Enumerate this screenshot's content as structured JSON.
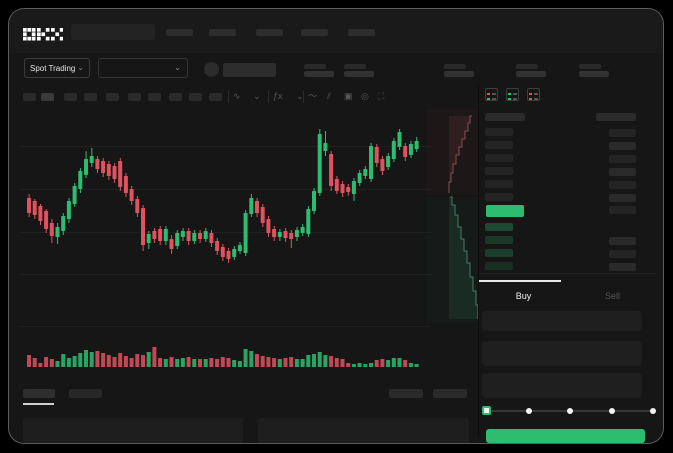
{
  "app": {
    "name": "OKX"
  },
  "colors": {
    "up_green": "#2ebd70",
    "down_red": "#df5260",
    "window_bg": "#161616",
    "topbar_bg": "#1a1a1a",
    "placeholder": "#2b2b2b",
    "active_tab_underline": "#e8e8e8"
  },
  "topbar": {
    "nav_placeholders": 5,
    "has_search_placeholder": true
  },
  "market_header": {
    "market_type_selector": {
      "label": "Spot Trading",
      "chevron": "⌄"
    },
    "pair_selector": {
      "chevron": "⌄"
    },
    "stat_placeholders": 5
  },
  "chart_toolbar": {
    "timeframe_placeholders": 10,
    "icons": [
      {
        "name": "candle-style-icon",
        "glyph": "∿"
      },
      {
        "name": "chevron-down-icon",
        "glyph": "⌄"
      },
      {
        "name": "indicators-icon",
        "glyph": "ƒx"
      },
      {
        "name": "chevron-down-icon",
        "glyph": "⌄"
      },
      {
        "name": "trendline-tool-icon",
        "glyph": "〜"
      },
      {
        "name": "parallel-lines-tool-icon",
        "glyph": "⫽"
      },
      {
        "name": "shape-tool-icon",
        "glyph": "▣"
      },
      {
        "name": "target-icon",
        "glyph": "◎"
      },
      {
        "name": "fullscreen-icon",
        "glyph": "⛶"
      }
    ]
  },
  "order_book": {
    "view_toggle_icons": [
      "combined-book-icon",
      "bids-only-icon",
      "asks-only-icon"
    ],
    "ask_row_placeholders": 6,
    "bid_row_placeholders": 4,
    "amount_row_placeholders": 10,
    "current_price_highlight_color": "#2ebd70"
  },
  "trade_panel": {
    "tabs": [
      {
        "label": "Buy",
        "active": true
      },
      {
        "label": "Sell",
        "active": false
      }
    ],
    "field_placeholders": 3,
    "slider": {
      "stops": 5,
      "active_stop": 0,
      "handle_color": "#2ebd70"
    },
    "submit_button": {
      "color": "#2ebd70",
      "label": ""
    }
  },
  "bottom_bar": {
    "tab_placeholders": 2,
    "button_placeholders": 2,
    "panel_placeholders": 2
  },
  "chart_data": [
    {
      "id": "price-chart",
      "type": "candlestick",
      "title": "",
      "axes_labeled": false,
      "grid": true,
      "units": "relative price (0 = chart bottom, ~215 = chart top); no numeric axis labels visible",
      "colors": {
        "up": "#2ebd70",
        "down": "#df5260"
      },
      "candles_ohlc": [
        [
          133,
          137,
          114,
          118
        ],
        [
          130,
          132,
          112,
          116
        ],
        [
          125,
          127,
          106,
          110
        ],
        [
          120,
          122,
          98,
          102
        ],
        [
          108,
          112,
          88,
          95
        ],
        [
          94,
          108,
          87,
          104
        ],
        [
          100,
          118,
          96,
          115
        ],
        [
          112,
          133,
          108,
          130
        ],
        [
          127,
          148,
          124,
          145
        ],
        [
          142,
          163,
          138,
          160
        ],
        [
          156,
          180,
          153,
          172
        ],
        [
          168,
          183,
          164,
          175
        ],
        [
          172,
          175,
          158,
          162
        ],
        [
          170,
          173,
          154,
          158
        ],
        [
          167,
          170,
          151,
          155
        ],
        [
          165,
          168,
          148,
          152
        ],
        [
          170,
          173,
          140,
          144
        ],
        [
          155,
          158,
          134,
          138
        ],
        [
          142,
          145,
          126,
          130
        ],
        [
          132,
          135,
          114,
          118
        ],
        [
          123,
          126,
          80,
          86
        ],
        [
          88,
          100,
          82,
          97
        ],
        [
          100,
          103,
          88,
          92
        ],
        [
          102,
          105,
          86,
          90
        ],
        [
          90,
          105,
          86,
          102
        ],
        [
          92,
          96,
          77,
          82
        ],
        [
          85,
          101,
          82,
          98
        ],
        [
          94,
          103,
          90,
          100
        ],
        [
          100,
          103,
          86,
          90
        ],
        [
          90,
          101,
          87,
          98
        ],
        [
          98,
          101,
          88,
          92
        ],
        [
          92,
          103,
          89,
          100
        ],
        [
          98,
          101,
          84,
          88
        ],
        [
          90,
          93,
          76,
          80
        ],
        [
          84,
          87,
          70,
          74
        ],
        [
          80,
          83,
          68,
          72
        ],
        [
          74,
          85,
          71,
          82
        ],
        [
          80,
          89,
          77,
          86
        ],
        [
          78,
          121,
          75,
          118
        ],
        [
          117,
          137,
          114,
          133
        ],
        [
          130,
          133,
          114,
          118
        ],
        [
          124,
          127,
          104,
          108
        ],
        [
          112,
          115,
          94,
          98
        ],
        [
          102,
          105,
          90,
          94
        ],
        [
          94,
          102,
          90,
          99
        ],
        [
          100,
          103,
          89,
          93
        ],
        [
          98,
          101,
          83,
          92
        ],
        [
          94,
          104,
          90,
          101
        ],
        [
          98,
          107,
          95,
          104
        ],
        [
          97,
          125,
          94,
          122
        ],
        [
          120,
          143,
          117,
          140
        ],
        [
          138,
          202,
          135,
          197
        ],
        [
          180,
          200,
          175,
          188
        ],
        [
          177,
          180,
          140,
          145
        ],
        [
          152,
          155,
          137,
          140
        ],
        [
          147,
          150,
          134,
          138
        ],
        [
          144,
          147,
          135,
          139
        ],
        [
          137,
          153,
          130,
          150
        ],
        [
          148,
          161,
          145,
          158
        ],
        [
          155,
          165,
          152,
          162
        ],
        [
          152,
          188,
          149,
          185
        ],
        [
          184,
          187,
          164,
          168
        ],
        [
          172,
          175,
          156,
          160
        ],
        [
          164,
          178,
          161,
          175
        ],
        [
          172,
          193,
          169,
          190
        ],
        [
          184,
          202,
          181,
          199
        ],
        [
          185,
          188,
          170,
          174
        ],
        [
          176,
          190,
          173,
          187
        ],
        [
          182,
          194,
          179,
          190
        ]
      ],
      "volume": [
        12,
        9,
        4,
        10,
        8,
        6,
        13,
        9,
        11,
        14,
        17,
        15,
        16,
        14,
        12,
        10,
        14,
        11,
        9,
        13,
        12,
        15,
        20,
        9,
        8,
        10,
        8,
        9,
        10,
        8,
        8,
        8,
        9,
        8,
        10,
        9,
        7,
        6,
        18,
        16,
        13,
        11,
        10,
        9,
        8,
        9,
        10,
        8,
        8,
        12,
        13,
        15,
        12,
        11,
        9,
        8,
        4,
        3,
        4,
        3,
        4,
        7,
        8,
        7,
        9,
        9,
        7,
        4,
        3
      ]
    },
    {
      "id": "depth-chart",
      "type": "area",
      "orientation": "vertical",
      "note": "order-book depth wedge beside chart; asks (red) above mid, bids (green) below",
      "ask_steps": [
        [
          46,
          7
        ],
        [
          44,
          14
        ],
        [
          42,
          22
        ],
        [
          39,
          30
        ],
        [
          36,
          38
        ],
        [
          33,
          46
        ],
        [
          30,
          55
        ],
        [
          27,
          64
        ],
        [
          25,
          73
        ],
        [
          23,
          84
        ]
      ],
      "bid_steps": [
        [
          24,
          88
        ],
        [
          26,
          96
        ],
        [
          29,
          106
        ],
        [
          32,
          118
        ],
        [
          35,
          130
        ],
        [
          38,
          142
        ],
        [
          41,
          154
        ],
        [
          44,
          168
        ],
        [
          47,
          182
        ],
        [
          50,
          196
        ],
        [
          52,
          210
        ]
      ],
      "ask_fill": "rgba(180,70,70,0.14)",
      "bid_fill": "rgba(45,150,105,0.14)",
      "ask_line": "rgba(215,125,125,0.55)",
      "bid_line": "rgba(110,195,165,0.55)"
    }
  ]
}
